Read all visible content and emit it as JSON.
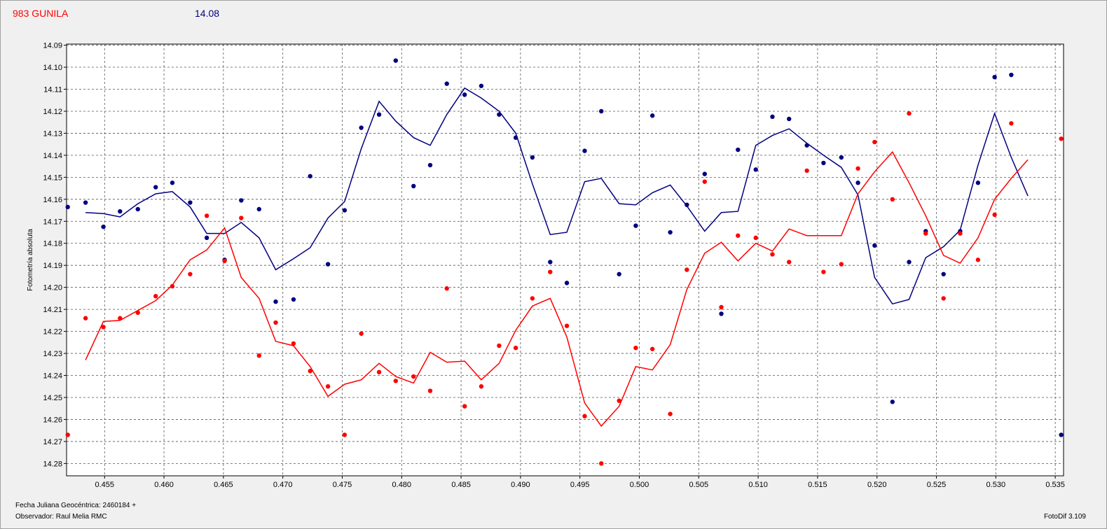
{
  "header": {
    "object_name": "983 GUNILA",
    "magnitude": "14.08",
    "object_color": "#ff0000",
    "magnitude_color": "#000080"
  },
  "footer": {
    "date_label": "Fecha Juliana Geocéntrica: 2460184 +",
    "observer": "Observador: Raul Melia RMC",
    "version": "FotoDif 3.109"
  },
  "chart_data": {
    "type": "scatter",
    "title": "",
    "xlabel": "",
    "ylabel": "Fotometría absoluta",
    "xlim": [
      0.4518,
      0.5357
    ],
    "ylim": [
      14.2856,
      14.0895
    ],
    "y_inverted": true,
    "grid": true,
    "x_ticks": [
      "0.455",
      "0.460",
      "0.465",
      "0.470",
      "0.475",
      "0.480",
      "0.485",
      "0.490",
      "0.495",
      "0.500",
      "0.505",
      "0.510",
      "0.515",
      "0.520",
      "0.525",
      "0.530",
      "0.535"
    ],
    "y_ticks": [
      "14.09",
      "14.10",
      "14.11",
      "14.12",
      "14.13",
      "14.14",
      "14.15",
      "14.16",
      "14.17",
      "14.18",
      "14.19",
      "14.20",
      "14.21",
      "14.22",
      "14.23",
      "14.24",
      "14.25",
      "14.26",
      "14.27",
      "14.28"
    ],
    "series": [
      {
        "color": "#000080",
        "points": [
          [
            0.4519,
            14.1635
          ],
          [
            0.4534,
            14.1615
          ],
          [
            0.4549,
            14.1725
          ],
          [
            0.4563,
            14.1655
          ],
          [
            0.4578,
            14.1645
          ],
          [
            0.4593,
            14.1545
          ],
          [
            0.4607,
            14.1525
          ],
          [
            0.4622,
            14.1615
          ],
          [
            0.4636,
            14.1775
          ],
          [
            0.4651,
            14.1875
          ],
          [
            0.4665,
            14.1605
          ],
          [
            0.468,
            14.1645
          ],
          [
            0.4694,
            14.2065
          ],
          [
            0.4709,
            14.2055
          ],
          [
            0.4723,
            14.1495
          ],
          [
            0.4738,
            14.1895
          ],
          [
            0.4752,
            14.165
          ],
          [
            0.4766,
            14.1275
          ],
          [
            0.4781,
            14.1215
          ],
          [
            0.4795,
            14.097
          ],
          [
            0.481,
            14.154
          ],
          [
            0.4824,
            14.1445
          ],
          [
            0.4838,
            14.1075
          ],
          [
            0.4853,
            14.1125
          ],
          [
            0.4867,
            14.1085
          ],
          [
            0.4882,
            14.1215
          ],
          [
            0.4896,
            14.132
          ],
          [
            0.491,
            14.141
          ],
          [
            0.4925,
            14.1885
          ],
          [
            0.4939,
            14.198
          ],
          [
            0.4954,
            14.138
          ],
          [
            0.4968,
            14.12
          ],
          [
            0.4983,
            14.194
          ],
          [
            0.4997,
            14.172
          ],
          [
            0.5011,
            14.122
          ],
          [
            0.5026,
            14.175
          ],
          [
            0.504,
            14.1625
          ],
          [
            0.5055,
            14.1485
          ],
          [
            0.5069,
            14.212
          ],
          [
            0.5083,
            14.1375
          ],
          [
            0.5098,
            14.1465
          ],
          [
            0.5112,
            14.1225
          ],
          [
            0.5126,
            14.1235
          ],
          [
            0.5141,
            14.1355
          ],
          [
            0.5155,
            14.1435
          ],
          [
            0.517,
            14.141
          ],
          [
            0.5184,
            14.1525
          ],
          [
            0.5198,
            14.181
          ],
          [
            0.5213,
            14.252
          ],
          [
            0.5227,
            14.1885
          ],
          [
            0.5241,
            14.1745
          ],
          [
            0.5256,
            14.194
          ],
          [
            0.527,
            14.1745
          ],
          [
            0.5285,
            14.1525
          ],
          [
            0.5299,
            14.1045
          ],
          [
            0.5313,
            14.1035
          ],
          [
            0.5355,
            14.267
          ]
        ],
        "smooth": [
          [
            0.4534,
            14.166
          ],
          [
            0.4549,
            14.1665
          ],
          [
            0.4563,
            14.168
          ],
          [
            0.4578,
            14.162
          ],
          [
            0.4593,
            14.1575
          ],
          [
            0.4607,
            14.1565
          ],
          [
            0.4622,
            14.1635
          ],
          [
            0.4636,
            14.1755
          ],
          [
            0.4651,
            14.1755
          ],
          [
            0.4665,
            14.1705
          ],
          [
            0.468,
            14.1775
          ],
          [
            0.4694,
            14.192
          ],
          [
            0.4709,
            14.187
          ],
          [
            0.4723,
            14.182
          ],
          [
            0.4738,
            14.1685
          ],
          [
            0.4752,
            14.161
          ],
          [
            0.4766,
            14.137
          ],
          [
            0.4781,
            14.1155
          ],
          [
            0.4795,
            14.1245
          ],
          [
            0.481,
            14.132
          ],
          [
            0.4824,
            14.1355
          ],
          [
            0.4838,
            14.1215
          ],
          [
            0.4853,
            14.1095
          ],
          [
            0.4867,
            14.114
          ],
          [
            0.4882,
            14.12
          ],
          [
            0.4896,
            14.13
          ],
          [
            0.491,
            14.153
          ],
          [
            0.4925,
            14.176
          ],
          [
            0.4939,
            14.175
          ],
          [
            0.4954,
            14.152
          ],
          [
            0.4968,
            14.1505
          ],
          [
            0.4983,
            14.162
          ],
          [
            0.4997,
            14.1625
          ],
          [
            0.5011,
            14.157
          ],
          [
            0.5026,
            14.1535
          ],
          [
            0.504,
            14.163
          ],
          [
            0.5055,
            14.1745
          ],
          [
            0.5069,
            14.166
          ],
          [
            0.5083,
            14.1655
          ],
          [
            0.5098,
            14.1355
          ],
          [
            0.5112,
            14.131
          ],
          [
            0.5126,
            14.128
          ],
          [
            0.5141,
            14.1345
          ],
          [
            0.5155,
            14.14
          ],
          [
            0.517,
            14.1455
          ],
          [
            0.5184,
            14.158
          ],
          [
            0.5198,
            14.1955
          ],
          [
            0.5213,
            14.2075
          ],
          [
            0.5227,
            14.2055
          ],
          [
            0.5241,
            14.1865
          ],
          [
            0.5256,
            14.1815
          ],
          [
            0.527,
            14.174
          ],
          [
            0.5285,
            14.1445
          ],
          [
            0.5299,
            14.121
          ],
          [
            0.5313,
            14.141
          ],
          [
            0.5327,
            14.1585
          ]
        ]
      },
      {
        "color": "#ff0000",
        "points": [
          [
            0.4519,
            14.267
          ],
          [
            0.4534,
            14.214
          ],
          [
            0.4549,
            14.218
          ],
          [
            0.4563,
            14.214
          ],
          [
            0.4578,
            14.2115
          ],
          [
            0.4593,
            14.204
          ],
          [
            0.4607,
            14.1995
          ],
          [
            0.4622,
            14.194
          ],
          [
            0.4636,
            14.1675
          ],
          [
            0.4651,
            14.188
          ],
          [
            0.4665,
            14.1685
          ],
          [
            0.468,
            14.231
          ],
          [
            0.4694,
            14.216
          ],
          [
            0.4709,
            14.2255
          ],
          [
            0.4723,
            14.238
          ],
          [
            0.4738,
            14.245
          ],
          [
            0.4752,
            14.267
          ],
          [
            0.4766,
            14.221
          ],
          [
            0.4781,
            14.2385
          ],
          [
            0.4795,
            14.2425
          ],
          [
            0.481,
            14.2405
          ],
          [
            0.4824,
            14.247
          ],
          [
            0.4838,
            14.2005
          ],
          [
            0.4853,
            14.254
          ],
          [
            0.4867,
            14.245
          ],
          [
            0.4882,
            14.2265
          ],
          [
            0.4896,
            14.2275
          ],
          [
            0.491,
            14.205
          ],
          [
            0.4925,
            14.193
          ],
          [
            0.4939,
            14.2175
          ],
          [
            0.4954,
            14.2585
          ],
          [
            0.4968,
            14.28
          ],
          [
            0.4983,
            14.2515
          ],
          [
            0.4997,
            14.2275
          ],
          [
            0.5011,
            14.228
          ],
          [
            0.5026,
            14.2575
          ],
          [
            0.504,
            14.192
          ],
          [
            0.5055,
            14.152
          ],
          [
            0.5069,
            14.209
          ],
          [
            0.5083,
            14.1765
          ],
          [
            0.5098,
            14.1775
          ],
          [
            0.5112,
            14.185
          ],
          [
            0.5126,
            14.1885
          ],
          [
            0.5141,
            14.147
          ],
          [
            0.5155,
            14.193
          ],
          [
            0.517,
            14.1895
          ],
          [
            0.5184,
            14.146
          ],
          [
            0.5198,
            14.134
          ],
          [
            0.5213,
            14.16
          ],
          [
            0.5227,
            14.121
          ],
          [
            0.5241,
            14.1755
          ],
          [
            0.5256,
            14.205
          ],
          [
            0.527,
            14.1755
          ],
          [
            0.5285,
            14.1875
          ],
          [
            0.5299,
            14.167
          ],
          [
            0.5313,
            14.1255
          ],
          [
            0.5355,
            14.1325
          ]
        ],
        "smooth": [
          [
            0.4534,
            14.233
          ],
          [
            0.4549,
            14.2155
          ],
          [
            0.4563,
            14.215
          ],
          [
            0.4578,
            14.2105
          ],
          [
            0.4593,
            14.206
          ],
          [
            0.4607,
            14.199
          ],
          [
            0.4622,
            14.1875
          ],
          [
            0.4636,
            14.183
          ],
          [
            0.4651,
            14.173
          ],
          [
            0.4665,
            14.1955
          ],
          [
            0.468,
            14.205
          ],
          [
            0.4694,
            14.2245
          ],
          [
            0.4709,
            14.2265
          ],
          [
            0.4723,
            14.236
          ],
          [
            0.4738,
            14.2495
          ],
          [
            0.4752,
            14.244
          ],
          [
            0.4766,
            14.242
          ],
          [
            0.4781,
            14.2345
          ],
          [
            0.4795,
            14.2405
          ],
          [
            0.481,
            14.2435
          ],
          [
            0.4824,
            14.2295
          ],
          [
            0.4838,
            14.234
          ],
          [
            0.4853,
            14.2335
          ],
          [
            0.4867,
            14.242
          ],
          [
            0.4882,
            14.2345
          ],
          [
            0.4896,
            14.2195
          ],
          [
            0.491,
            14.2085
          ],
          [
            0.4925,
            14.205
          ],
          [
            0.4939,
            14.2225
          ],
          [
            0.4954,
            14.2525
          ],
          [
            0.4968,
            14.263
          ],
          [
            0.4983,
            14.254
          ],
          [
            0.4997,
            14.236
          ],
          [
            0.5011,
            14.2375
          ],
          [
            0.5026,
            14.226
          ],
          [
            0.504,
            14.201
          ],
          [
            0.5055,
            14.1845
          ],
          [
            0.5069,
            14.1795
          ],
          [
            0.5083,
            14.188
          ],
          [
            0.5098,
            14.18
          ],
          [
            0.5112,
            14.1835
          ],
          [
            0.5126,
            14.1735
          ],
          [
            0.5141,
            14.1765
          ],
          [
            0.5155,
            14.1765
          ],
          [
            0.517,
            14.1765
          ],
          [
            0.5184,
            14.1575
          ],
          [
            0.5198,
            14.1475
          ],
          [
            0.5213,
            14.1385
          ],
          [
            0.5227,
            14.1525
          ],
          [
            0.5241,
            14.1675
          ],
          [
            0.5256,
            14.1855
          ],
          [
            0.527,
            14.189
          ],
          [
            0.5285,
            14.1775
          ],
          [
            0.5299,
            14.16
          ],
          [
            0.5313,
            14.1505
          ],
          [
            0.5327,
            14.142
          ]
        ]
      }
    ]
  }
}
